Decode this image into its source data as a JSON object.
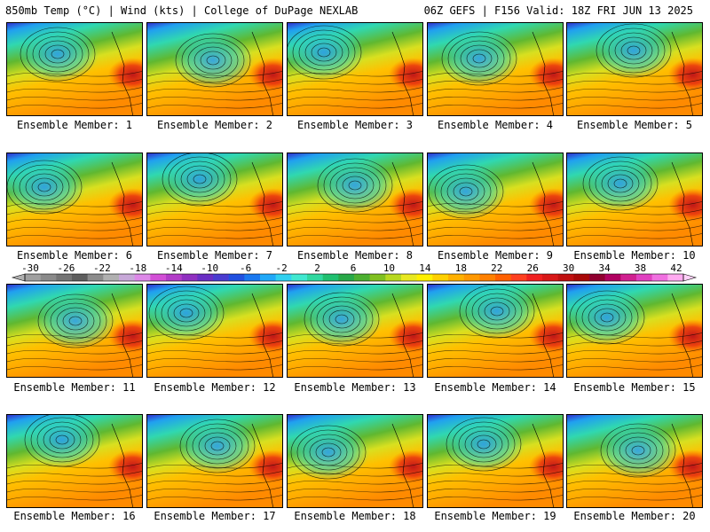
{
  "header": {
    "left": "850mb Temp (°C) | Wind (kts) | College of DuPage NEXLAB",
    "right": "06Z GEFS | F156 Valid: 18Z FRI JUN 13 2025"
  },
  "panels": [
    {
      "member": 1,
      "label": "Ensemble Member: 1"
    },
    {
      "member": 2,
      "label": "Ensemble Member: 2"
    },
    {
      "member": 3,
      "label": "Ensemble Member: 3"
    },
    {
      "member": 4,
      "label": "Ensemble Member: 4"
    },
    {
      "member": 5,
      "label": "Ensemble Member: 5"
    },
    {
      "member": 6,
      "label": "Ensemble Member: 6"
    },
    {
      "member": 7,
      "label": "Ensemble Member: 7"
    },
    {
      "member": 8,
      "label": "Ensemble Member: 8"
    },
    {
      "member": 9,
      "label": "Ensemble Member: 9"
    },
    {
      "member": 10,
      "label": "Ensemble Member: 10"
    },
    {
      "member": 11,
      "label": "Ensemble Member: 11"
    },
    {
      "member": 12,
      "label": "Ensemble Member: 12"
    },
    {
      "member": 13,
      "label": "Ensemble Member: 13"
    },
    {
      "member": 14,
      "label": "Ensemble Member: 14"
    },
    {
      "member": 15,
      "label": "Ensemble Member: 15"
    },
    {
      "member": 16,
      "label": "Ensemble Member: 16"
    },
    {
      "member": 17,
      "label": "Ensemble Member: 17"
    },
    {
      "member": 18,
      "label": "Ensemble Member: 18"
    },
    {
      "member": 19,
      "label": "Ensemble Member: 19"
    },
    {
      "member": 20,
      "label": "Ensemble Member: 20"
    }
  ],
  "colorbar": {
    "tick_labels": [
      "-30",
      "-26",
      "-22",
      "-18",
      "-14",
      "-10",
      "-6",
      "-2",
      "2",
      "6",
      "10",
      "14",
      "18",
      "22",
      "26",
      "30",
      "34",
      "38",
      "42"
    ],
    "bins": [
      "#a0a0a0",
      "#8a8a8a",
      "#747474",
      "#5e5e5e",
      "#8c8c8c",
      "#b0b0b0",
      "#c7a8d8",
      "#dd88e8",
      "#d24fd6",
      "#b23cc8",
      "#9030c0",
      "#6a2fc4",
      "#4a3cd0",
      "#2050e0",
      "#1a78f0",
      "#20a8f8",
      "#30d0f0",
      "#40e8d0",
      "#30d8a0",
      "#20c070",
      "#28a848",
      "#4cb030",
      "#80c020",
      "#b8d820",
      "#e8e820",
      "#fff000",
      "#ffd000",
      "#ffb000",
      "#ff9800",
      "#ff8000",
      "#ff6000",
      "#ff4020",
      "#f02020",
      "#d81818",
      "#c01010",
      "#a80808",
      "#900030",
      "#b00060",
      "#d02090",
      "#e040c0",
      "#f070e0",
      "#ffaaf0"
    ]
  }
}
